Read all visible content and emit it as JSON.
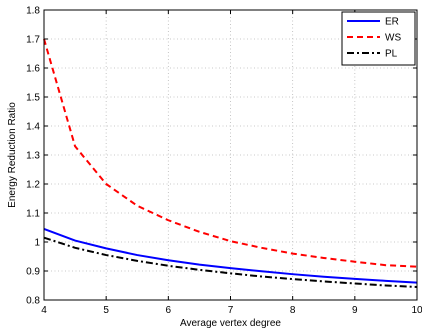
{
  "chart_data": {
    "type": "line",
    "title": "",
    "xlabel": "Average vertex degree",
    "ylabel": "Energy Reduction Ratio",
    "xlim": [
      4,
      10
    ],
    "ylim": [
      0.8,
      1.8
    ],
    "xticks": [
      "4",
      "5",
      "6",
      "7",
      "8",
      "9",
      "10"
    ],
    "yticks": [
      "0.8",
      "0.9",
      "1",
      "1.1",
      "1.2",
      "1.3",
      "1.4",
      "1.5",
      "1.6",
      "1.7",
      "1.8"
    ],
    "grid": true,
    "legend_position": "top-right",
    "x": [
      4,
      4.5,
      5,
      5.5,
      6,
      6.5,
      7,
      7.5,
      8,
      8.5,
      9,
      9.5,
      10
    ],
    "series": [
      {
        "name": "ER",
        "color": "#0000ff",
        "style": "solid",
        "values": [
          1.045,
          1.005,
          0.978,
          0.955,
          0.937,
          0.922,
          0.91,
          0.899,
          0.889,
          0.88,
          0.873,
          0.866,
          0.86
        ]
      },
      {
        "name": "WS",
        "color": "#ff0000",
        "style": "dashed",
        "values": [
          1.7,
          1.33,
          1.2,
          1.125,
          1.075,
          1.035,
          1.003,
          0.98,
          0.96,
          0.945,
          0.932,
          0.92,
          0.915
        ]
      },
      {
        "name": "PL",
        "color": "#000000",
        "style": "dashdot",
        "values": [
          1.015,
          0.98,
          0.955,
          0.935,
          0.918,
          0.904,
          0.892,
          0.881,
          0.872,
          0.864,
          0.857,
          0.85,
          0.845
        ]
      }
    ]
  }
}
